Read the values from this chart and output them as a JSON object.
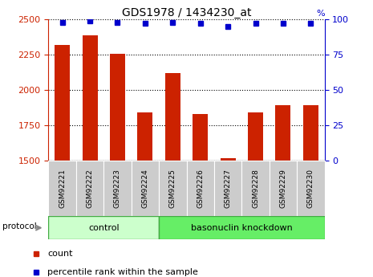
{
  "title": "GDS1978 / 1434230_at",
  "categories": [
    "GSM92221",
    "GSM92222",
    "GSM92223",
    "GSM92224",
    "GSM92225",
    "GSM92226",
    "GSM92227",
    "GSM92228",
    "GSM92229",
    "GSM92230"
  ],
  "bar_values": [
    2320,
    2390,
    2255,
    1840,
    2120,
    1830,
    1520,
    1840,
    1890,
    1895
  ],
  "percentile_values": [
    98,
    99,
    98,
    97,
    98,
    97,
    95,
    97,
    97,
    97
  ],
  "bar_color": "#cc2200",
  "dot_color": "#0000cc",
  "ylim_left": [
    1500,
    2500
  ],
  "ylim_right": [
    0,
    100
  ],
  "yticks_left": [
    1500,
    1750,
    2000,
    2250,
    2500
  ],
  "yticks_right": [
    0,
    25,
    50,
    75,
    100
  ],
  "group1_label": "control",
  "group2_label": "basonuclin knockdown",
  "group1_count": 4,
  "group2_count": 6,
  "protocol_label": "protocol",
  "legend_bar_label": "count",
  "legend_dot_label": "percentile rank within the sample",
  "bar_bottom": 1500,
  "group_box_color1": "#ccffcc",
  "group_box_color2": "#66ee66",
  "sample_label_bg": "#cccccc",
  "tick_label_color_left": "#cc2200",
  "tick_label_color_right": "#0000cc"
}
